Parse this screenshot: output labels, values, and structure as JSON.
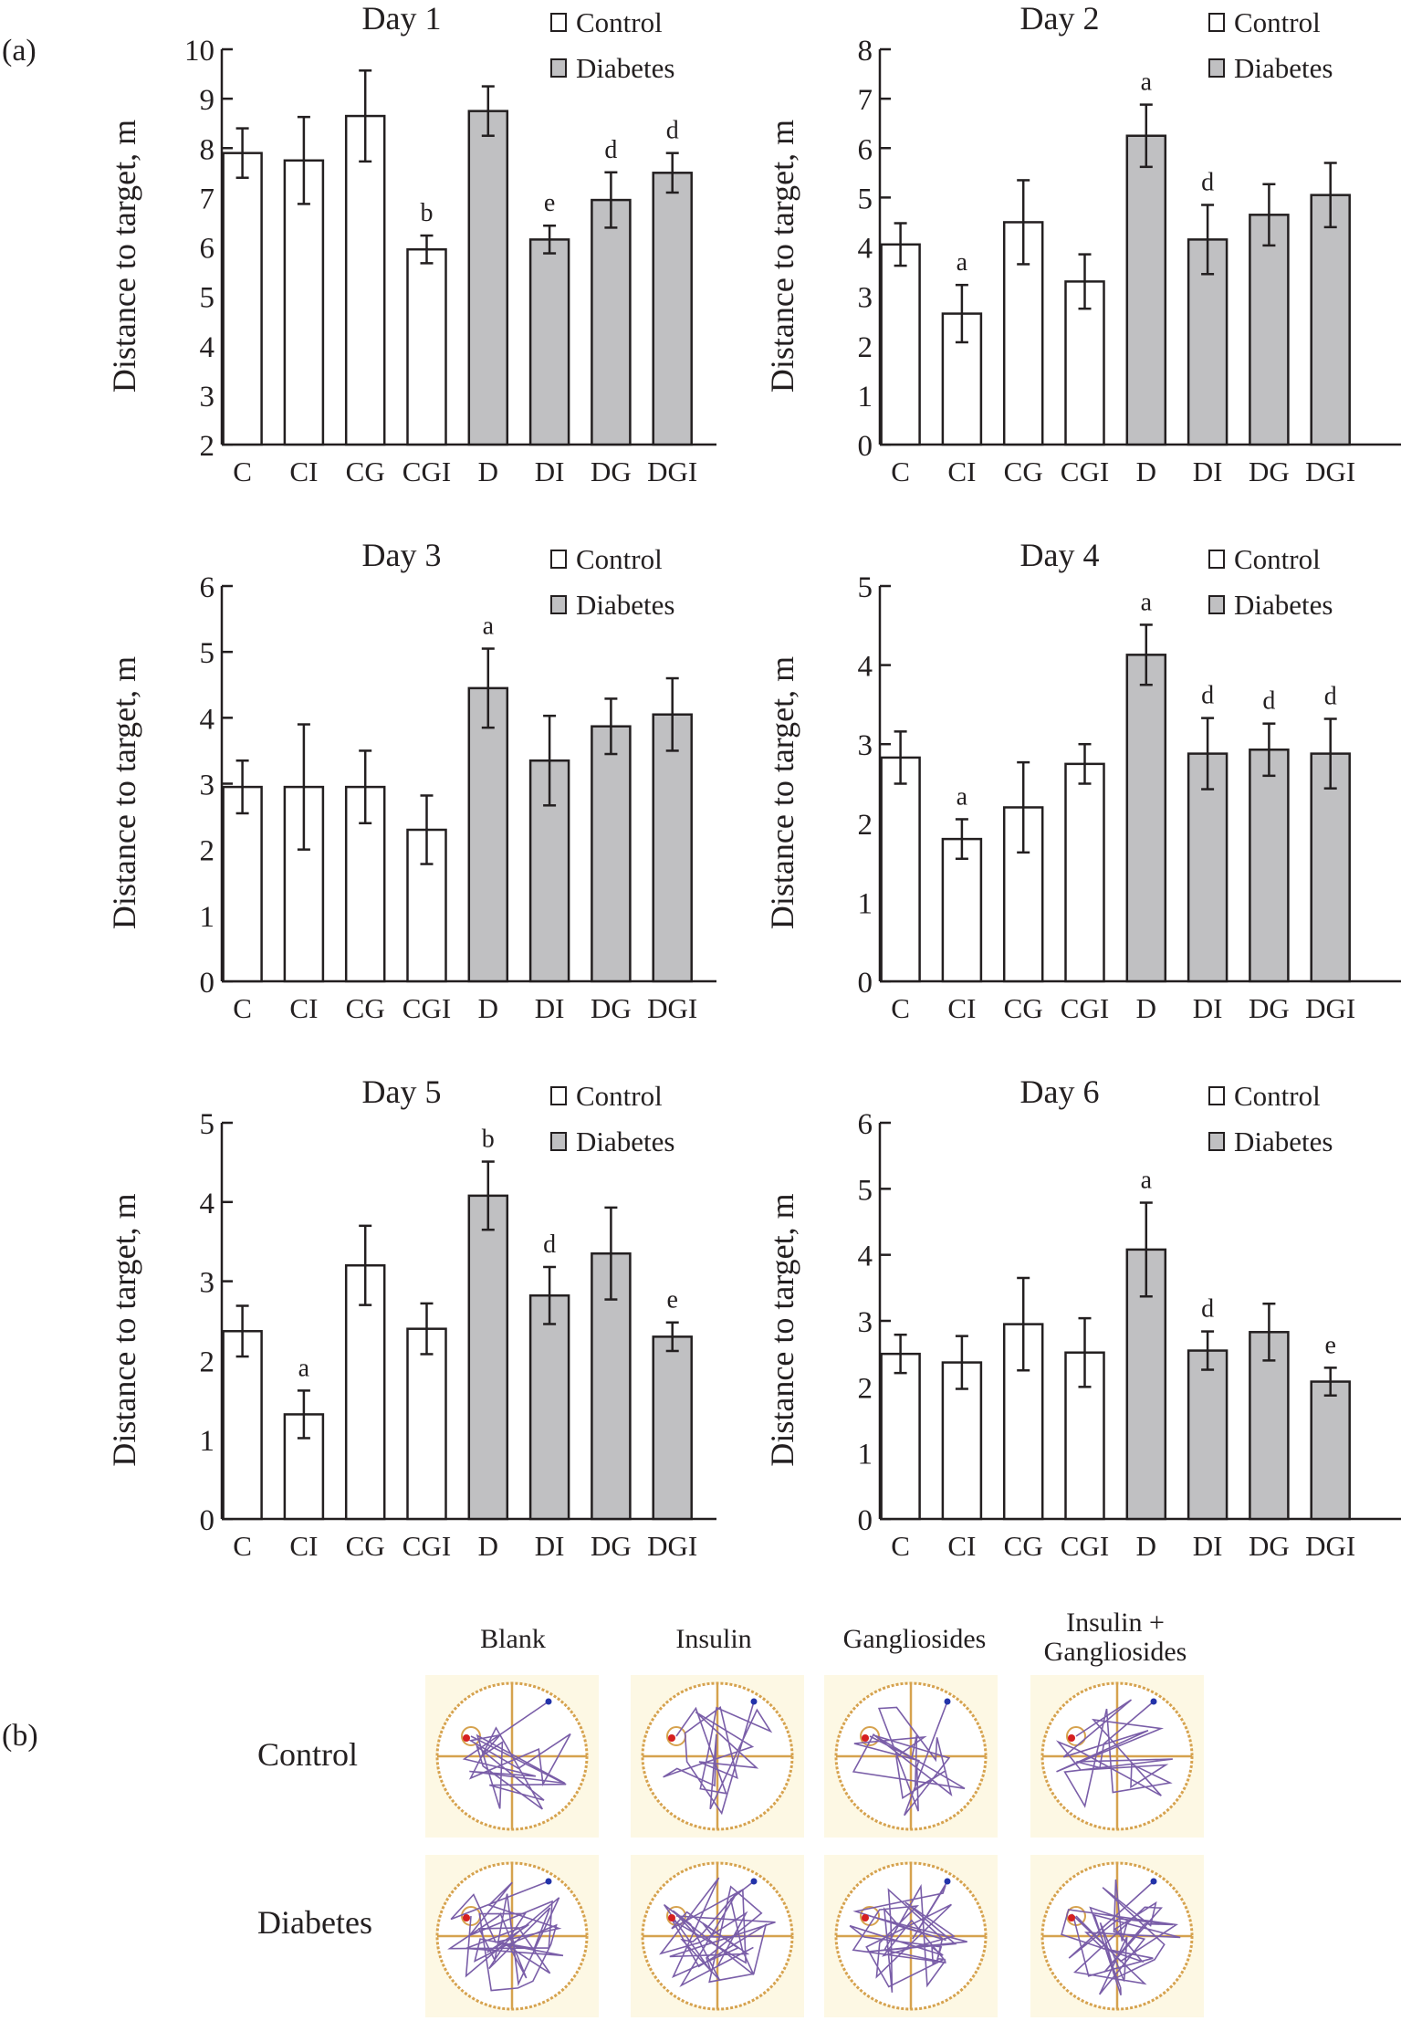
{
  "panel_labels": {
    "a": "(a)",
    "b": "(b)"
  },
  "colors": {
    "control": "#ffffff",
    "diabetes": "#c0c0c2",
    "axis": "#231f20",
    "maze_bg": "#fdf8e4",
    "maze_ring": "#d6a24e",
    "track": "#7a5ea8"
  },
  "legend": {
    "control": "Control",
    "diabetes": "Diabetes"
  },
  "chart_data": [
    {
      "type": "bar",
      "title": "Day 1",
      "ylabel": "Distance to target, m",
      "ylim": [
        2,
        10
      ],
      "yticks": [
        2,
        3,
        4,
        5,
        6,
        7,
        8,
        9,
        10
      ],
      "categories": [
        "C",
        "CI",
        "CG",
        "CGI",
        "D",
        "DI",
        "DG",
        "DGI"
      ],
      "group": [
        "Control",
        "Control",
        "Control",
        "Control",
        "Diabetes",
        "Diabetes",
        "Diabetes",
        "Diabetes"
      ],
      "values": [
        7.9,
        7.75,
        8.65,
        5.95,
        8.75,
        6.15,
        6.95,
        7.5
      ],
      "errors": [
        0.5,
        0.88,
        0.92,
        0.28,
        0.5,
        0.28,
        0.56,
        0.4
      ],
      "labels": [
        "",
        "",
        "",
        "b",
        "",
        "e",
        "d",
        "d"
      ]
    },
    {
      "type": "bar",
      "title": "Day 2",
      "ylabel": "Distance to target, m",
      "ylim": [
        0,
        8
      ],
      "yticks": [
        0,
        1,
        2,
        3,
        4,
        5,
        6,
        7,
        8
      ],
      "categories": [
        "C",
        "CI",
        "CG",
        "CGI",
        "D",
        "DI",
        "DG",
        "DGI"
      ],
      "group": [
        "Control",
        "Control",
        "Control",
        "Control",
        "Diabetes",
        "Diabetes",
        "Diabetes",
        "Diabetes"
      ],
      "values": [
        4.05,
        2.65,
        4.5,
        3.3,
        6.25,
        4.15,
        4.65,
        5.05
      ],
      "errors": [
        0.43,
        0.58,
        0.85,
        0.55,
        0.63,
        0.7,
        0.62,
        0.65
      ],
      "labels": [
        "",
        "a",
        "",
        "",
        "a",
        "d",
        "",
        ""
      ]
    },
    {
      "type": "bar",
      "title": "Day 3",
      "ylabel": "Distance to target, m",
      "ylim": [
        0,
        6
      ],
      "yticks": [
        0,
        1,
        2,
        3,
        4,
        5,
        6
      ],
      "categories": [
        "C",
        "CI",
        "CG",
        "CGI",
        "D",
        "DI",
        "DG",
        "DGI"
      ],
      "group": [
        "Control",
        "Control",
        "Control",
        "Control",
        "Diabetes",
        "Diabetes",
        "Diabetes",
        "Diabetes"
      ],
      "values": [
        2.95,
        2.95,
        2.95,
        2.3,
        4.45,
        3.35,
        3.87,
        4.05
      ],
      "errors": [
        0.4,
        0.95,
        0.55,
        0.52,
        0.6,
        0.68,
        0.42,
        0.55
      ],
      "labels": [
        "",
        "",
        "",
        "",
        "a",
        "",
        "",
        ""
      ]
    },
    {
      "type": "bar",
      "title": "Day 4",
      "ylabel": "Distance to target, m",
      "ylim": [
        0,
        5
      ],
      "yticks": [
        0,
        1,
        2,
        3,
        4,
        5
      ],
      "categories": [
        "C",
        "CI",
        "CG",
        "CGI",
        "D",
        "DI",
        "DG",
        "DGI"
      ],
      "group": [
        "Control",
        "Control",
        "Control",
        "Control",
        "Diabetes",
        "Diabetes",
        "Diabetes",
        "Diabetes"
      ],
      "values": [
        2.83,
        1.8,
        2.2,
        2.75,
        4.13,
        2.88,
        2.93,
        2.88
      ],
      "errors": [
        0.33,
        0.25,
        0.57,
        0.25,
        0.38,
        0.45,
        0.33,
        0.44
      ],
      "labels": [
        "",
        "a",
        "",
        "",
        "a",
        "d",
        "d",
        "d"
      ]
    },
    {
      "type": "bar",
      "title": "Day 5",
      "ylabel": "Distance to target, m",
      "ylim": [
        0,
        5
      ],
      "yticks": [
        0,
        1,
        2,
        3,
        4,
        5
      ],
      "categories": [
        "C",
        "CI",
        "CG",
        "CGI",
        "D",
        "DI",
        "DG",
        "DGI"
      ],
      "group": [
        "Control",
        "Control",
        "Control",
        "Control",
        "Diabetes",
        "Diabetes",
        "Diabetes",
        "Diabetes"
      ],
      "values": [
        2.37,
        1.32,
        3.2,
        2.4,
        4.08,
        2.82,
        3.35,
        2.3
      ],
      "errors": [
        0.32,
        0.3,
        0.5,
        0.32,
        0.43,
        0.36,
        0.58,
        0.18
      ],
      "labels": [
        "",
        "a",
        "",
        "",
        "b",
        "d",
        "",
        "e"
      ]
    },
    {
      "type": "bar",
      "title": "Day 6",
      "ylabel": "Distance to target, m",
      "ylim": [
        0,
        6
      ],
      "yticks": [
        0,
        1,
        2,
        3,
        4,
        5,
        6
      ],
      "categories": [
        "C",
        "CI",
        "CG",
        "CGI",
        "D",
        "DI",
        "DG",
        "DGI"
      ],
      "group": [
        "Control",
        "Control",
        "Control",
        "Control",
        "Diabetes",
        "Diabetes",
        "Diabetes",
        "Diabetes"
      ],
      "values": [
        2.5,
        2.37,
        2.95,
        2.52,
        4.08,
        2.55,
        2.83,
        2.08
      ],
      "errors": [
        0.29,
        0.4,
        0.7,
        0.52,
        0.71,
        0.29,
        0.43,
        0.21
      ],
      "labels": [
        "",
        "",
        "",
        "",
        "a",
        "d",
        "",
        "e"
      ]
    }
  ],
  "tracks": {
    "columns": [
      "Blank",
      "Insulin",
      "Gangliosides",
      "Insulin +\nGangliosides"
    ],
    "rows": [
      "Control",
      "Diabetes"
    ]
  }
}
